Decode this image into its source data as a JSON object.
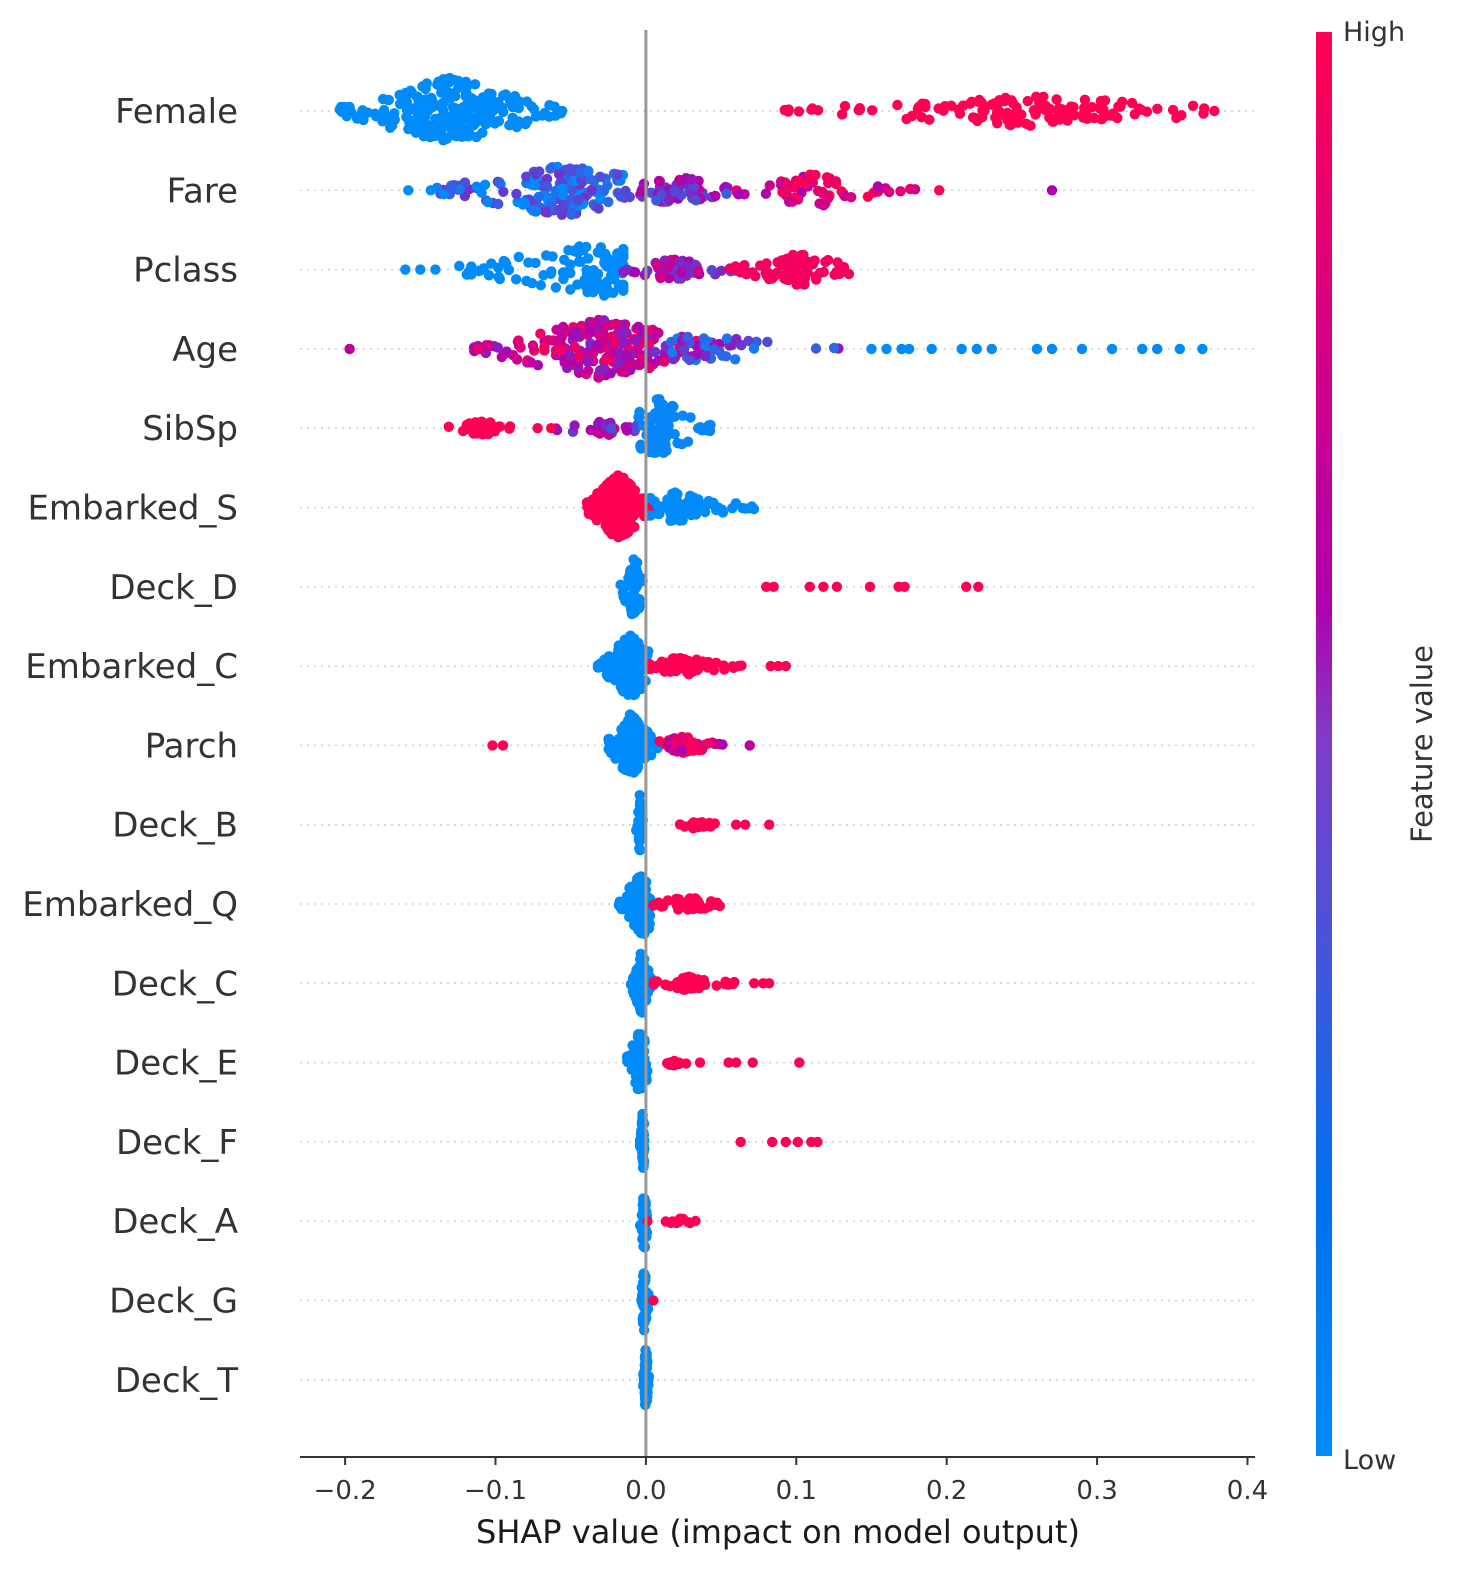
{
  "chart_data": {
    "type": "scatter",
    "xlabel": "SHAP value (impact on model output)",
    "xlim": [
      -0.23,
      0.405
    ],
    "xticks": [
      -0.2,
      -0.1,
      0.0,
      0.1,
      0.2,
      0.3,
      0.4
    ],
    "xtick_labels": [
      "−0.2",
      "−0.1",
      "0.0",
      "0.1",
      "0.2",
      "0.3",
      "0.4"
    ],
    "grid": "horizontal dotted per feature",
    "colorbar": {
      "title": "Feature value",
      "high_label": "High",
      "low_label": "Low",
      "low_color": "#008bfb",
      "mid_color": "#b000ae",
      "high_color": "#ff0052"
    },
    "features": [
      {
        "name": "Female",
        "clusters": [
          {
            "min": -0.205,
            "max": -0.055,
            "center": -0.13,
            "n": 240,
            "spread": 0.45,
            "v": 0
          },
          {
            "min": 0.09,
            "max": 0.38,
            "center": 0.255,
            "n": 140,
            "spread": 0.2,
            "v": 1
          }
        ],
        "points": [
          {
            "x": -0.2,
            "v": 0
          },
          {
            "x": 0.378,
            "v": 1
          }
        ]
      },
      {
        "name": "Fare",
        "clusters": [
          {
            "min": -0.14,
            "max": -0.01,
            "center": -0.055,
            "n": 170,
            "spread": 0.35,
            "v": 0.15
          },
          {
            "min": -0.01,
            "max": 0.06,
            "center": 0.02,
            "n": 60,
            "spread": 0.2,
            "v": 0.45
          },
          {
            "min": 0.06,
            "max": 0.18,
            "center": 0.11,
            "n": 60,
            "spread": 0.22,
            "v": 0.8
          }
        ],
        "points": [
          {
            "x": -0.158,
            "v": 0
          },
          {
            "x": -0.143,
            "v": 0
          },
          {
            "x": 0.195,
            "v": 1
          },
          {
            "x": 0.27,
            "v": 0.6
          }
        ]
      },
      {
        "name": "Pclass",
        "clusters": [
          {
            "min": -0.13,
            "max": -0.015,
            "center": -0.03,
            "n": 120,
            "spread": 0.35,
            "v": 0
          },
          {
            "min": -0.015,
            "max": 0.06,
            "center": 0.02,
            "n": 60,
            "spread": 0.15,
            "v": 0.55
          },
          {
            "min": 0.055,
            "max": 0.135,
            "center": 0.1,
            "n": 80,
            "spread": 0.22,
            "v": 0.95
          }
        ],
        "points": [
          {
            "x": -0.16,
            "v": 0
          },
          {
            "x": -0.15,
            "v": 0
          },
          {
            "x": -0.14,
            "v": 0
          }
        ]
      },
      {
        "name": "Age",
        "clusters": [
          {
            "min": -0.115,
            "max": 0.05,
            "center": -0.03,
            "n": 220,
            "spread": 0.4,
            "v": 0.7
          },
          {
            "min": 0.0,
            "max": 0.13,
            "center": 0.04,
            "n": 50,
            "spread": 0.18,
            "v": 0.3
          }
        ],
        "points": [
          {
            "x": -0.197,
            "v": 0.65
          },
          {
            "x": 0.15,
            "v": 0
          },
          {
            "x": 0.16,
            "v": 0
          },
          {
            "x": 0.17,
            "v": 0
          },
          {
            "x": 0.175,
            "v": 0
          },
          {
            "x": 0.19,
            "v": 0
          },
          {
            "x": 0.21,
            "v": 0
          },
          {
            "x": 0.22,
            "v": 0
          },
          {
            "x": 0.23,
            "v": 0
          },
          {
            "x": 0.26,
            "v": 0
          },
          {
            "x": 0.27,
            "v": 0
          },
          {
            "x": 0.29,
            "v": 0
          },
          {
            "x": 0.31,
            "v": 0
          },
          {
            "x": 0.33,
            "v": 0
          },
          {
            "x": 0.34,
            "v": 0
          },
          {
            "x": 0.355,
            "v": 0
          },
          {
            "x": 0.37,
            "v": 0
          }
        ]
      },
      {
        "name": "SibSp",
        "clusters": [
          {
            "min": -0.135,
            "max": -0.09,
            "center": -0.11,
            "n": 45,
            "spread": 0.1,
            "v": 1
          },
          {
            "min": -0.075,
            "max": -0.005,
            "center": -0.03,
            "n": 25,
            "spread": 0.1,
            "v": 0.5
          },
          {
            "min": -0.005,
            "max": 0.045,
            "center": 0.008,
            "n": 80,
            "spread": 0.4,
            "v": 0.02
          }
        ],
        "points": [
          {
            "x": -0.072,
            "v": 1
          },
          {
            "x": -0.063,
            "v": 1
          }
        ]
      },
      {
        "name": "Embarked_S",
        "clusters": [
          {
            "min": -0.04,
            "max": 0.005,
            "center": -0.018,
            "n": 230,
            "spread": 0.45,
            "v": 1
          },
          {
            "min": 0.003,
            "max": 0.072,
            "center": 0.02,
            "n": 80,
            "spread": 0.2,
            "v": 0
          }
        ],
        "points": []
      },
      {
        "name": "Deck_D",
        "clusters": [
          {
            "min": -0.018,
            "max": -0.002,
            "center": -0.008,
            "n": 60,
            "spread": 0.42,
            "v": 0
          }
        ],
        "points": [
          {
            "x": 0.08,
            "v": 1
          },
          {
            "x": 0.085,
            "v": 1
          },
          {
            "x": 0.109,
            "v": 1
          },
          {
            "x": 0.118,
            "v": 1
          },
          {
            "x": 0.127,
            "v": 1
          },
          {
            "x": 0.149,
            "v": 1
          },
          {
            "x": 0.168,
            "v": 1
          },
          {
            "x": 0.172,
            "v": 1
          },
          {
            "x": 0.213,
            "v": 1
          },
          {
            "x": 0.221,
            "v": 1
          }
        ]
      },
      {
        "name": "Embarked_C",
        "clusters": [
          {
            "min": -0.032,
            "max": 0.002,
            "center": -0.01,
            "n": 160,
            "spread": 0.42,
            "v": 0
          },
          {
            "min": 0.002,
            "max": 0.065,
            "center": 0.025,
            "n": 70,
            "spread": 0.12,
            "v": 1
          }
        ],
        "points": [
          {
            "x": 0.083,
            "v": 1
          },
          {
            "x": 0.088,
            "v": 1
          },
          {
            "x": 0.093,
            "v": 1
          }
        ]
      },
      {
        "name": "Parch",
        "clusters": [
          {
            "min": -0.025,
            "max": 0.008,
            "center": -0.01,
            "n": 150,
            "spread": 0.42,
            "v": 0
          },
          {
            "min": 0.005,
            "max": 0.052,
            "center": 0.025,
            "n": 60,
            "spread": 0.12,
            "v": 0.82
          }
        ],
        "points": [
          {
            "x": -0.102,
            "v": 1
          },
          {
            "x": -0.095,
            "v": 1
          },
          {
            "x": 0.069,
            "v": 0.65
          }
        ]
      },
      {
        "name": "Deck_B",
        "clusters": [
          {
            "min": -0.007,
            "max": -0.002,
            "center": -0.004,
            "n": 45,
            "spread": 0.4,
            "v": 0
          },
          {
            "min": 0.02,
            "max": 0.05,
            "center": 0.035,
            "n": 28,
            "spread": 0.06,
            "v": 1
          }
        ],
        "points": [
          {
            "x": 0.06,
            "v": 1
          },
          {
            "x": 0.066,
            "v": 1
          },
          {
            "x": 0.082,
            "v": 1
          }
        ]
      },
      {
        "name": "Embarked_Q",
        "clusters": [
          {
            "min": -0.018,
            "max": 0.004,
            "center": -0.002,
            "n": 130,
            "spread": 0.42,
            "v": 0
          },
          {
            "min": 0.004,
            "max": 0.055,
            "center": 0.028,
            "n": 40,
            "spread": 0.1,
            "v": 1
          }
        ],
        "points": []
      },
      {
        "name": "Deck_C",
        "clusters": [
          {
            "min": -0.01,
            "max": 0.004,
            "center": -0.003,
            "n": 80,
            "spread": 0.42,
            "v": 0
          },
          {
            "min": 0.005,
            "max": 0.062,
            "center": 0.03,
            "n": 50,
            "spread": 0.1,
            "v": 1
          }
        ],
        "points": [
          {
            "x": 0.072,
            "v": 1
          },
          {
            "x": 0.078,
            "v": 1
          },
          {
            "x": 0.082,
            "v": 1
          }
        ]
      },
      {
        "name": "Deck_E",
        "clusters": [
          {
            "min": -0.014,
            "max": 0.002,
            "center": -0.004,
            "n": 70,
            "spread": 0.42,
            "v": 0
          },
          {
            "min": 0.013,
            "max": 0.028,
            "center": 0.02,
            "n": 12,
            "spread": 0.06,
            "v": 1
          }
        ],
        "points": [
          {
            "x": 0.036,
            "v": 1
          },
          {
            "x": 0.055,
            "v": 1
          },
          {
            "x": 0.06,
            "v": 1
          },
          {
            "x": 0.071,
            "v": 1
          },
          {
            "x": 0.102,
            "v": 1
          }
        ]
      },
      {
        "name": "Deck_F",
        "clusters": [
          {
            "min": -0.004,
            "max": -0.001,
            "center": -0.002,
            "n": 70,
            "spread": 0.42,
            "v": 0
          }
        ],
        "points": [
          {
            "x": 0.063,
            "v": 1
          },
          {
            "x": 0.084,
            "v": 1
          },
          {
            "x": 0.093,
            "v": 1
          },
          {
            "x": 0.101,
            "v": 1
          },
          {
            "x": 0.11,
            "v": 1
          },
          {
            "x": 0.114,
            "v": 1
          }
        ]
      },
      {
        "name": "Deck_A",
        "clusters": [
          {
            "min": -0.004,
            "max": 0.001,
            "center": -0.001,
            "n": 60,
            "spread": 0.42,
            "v": 0
          },
          {
            "min": 0.013,
            "max": 0.035,
            "center": 0.022,
            "n": 12,
            "spread": 0.05,
            "v": 1
          }
        ],
        "points": [
          {
            "x": 0.001,
            "v": 1
          }
        ]
      },
      {
        "name": "Deck_G",
        "clusters": [
          {
            "min": -0.003,
            "max": 0.002,
            "center": -0.001,
            "n": 55,
            "spread": 0.42,
            "v": 0
          }
        ],
        "points": [
          {
            "x": 0.005,
            "v": 1
          }
        ]
      },
      {
        "name": "Deck_T",
        "clusters": [
          {
            "min": -0.002,
            "max": 0.002,
            "center": 0.0,
            "n": 80,
            "spread": 0.45,
            "v": 0
          }
        ],
        "points": []
      }
    ]
  }
}
